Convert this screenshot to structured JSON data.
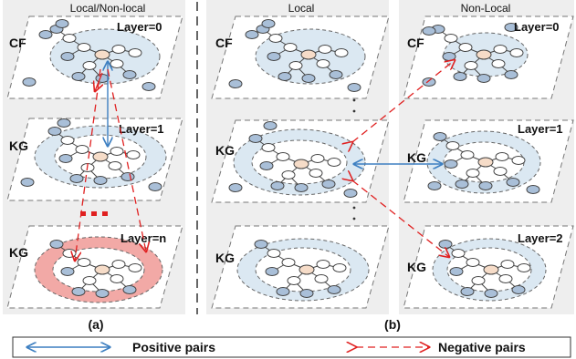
{
  "panels": {
    "a": {
      "title": "Local/Non-local",
      "caption": "(a)"
    },
    "b": {
      "title_local": "Local",
      "title_nonlocal": "Non-Local",
      "caption": "(b)"
    }
  },
  "labels": {
    "cf": "CF",
    "kg": "KG",
    "layer0": "Layer=0",
    "layer1": "Layer=1",
    "layern": "Layer=n",
    "layer2": "Layer=2",
    "ellipsis": "...",
    "dots": "·"
  },
  "legend": {
    "positive": "Positive pairs",
    "negative": "Negative pairs"
  },
  "colors": {
    "node_blue": "#a9bfd8",
    "ring_blue": "#dbe8f2",
    "ring_red": "#f2a9a6",
    "center_node": "#f6dcc8",
    "positive_arrow": "#3d7fc1",
    "negative_arrow": "#e02020"
  }
}
